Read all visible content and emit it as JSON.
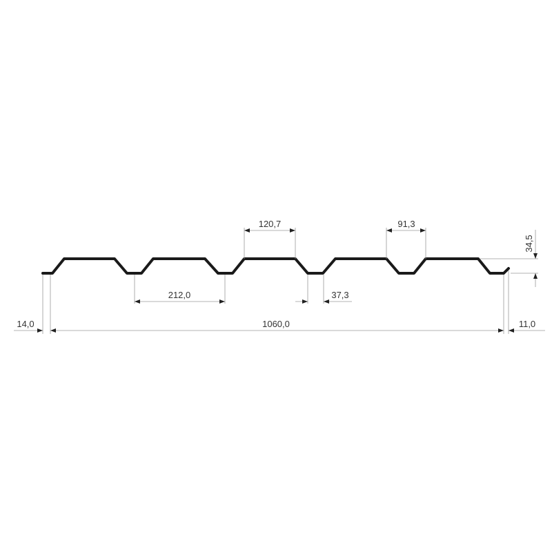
{
  "diagram": {
    "dimensions": {
      "rib_top_width": "120,7",
      "rib_top_width_2": "91,3",
      "pitch": "212,0",
      "trough_width": "37,3",
      "left_overhang": "14,0",
      "total_width": "1060,0",
      "right_overhang": "11,0",
      "height": "34,5"
    },
    "colors": {
      "profile": "#1a1a1a",
      "dimension_lines": "#9a9a9a",
      "text": "#333333"
    }
  }
}
